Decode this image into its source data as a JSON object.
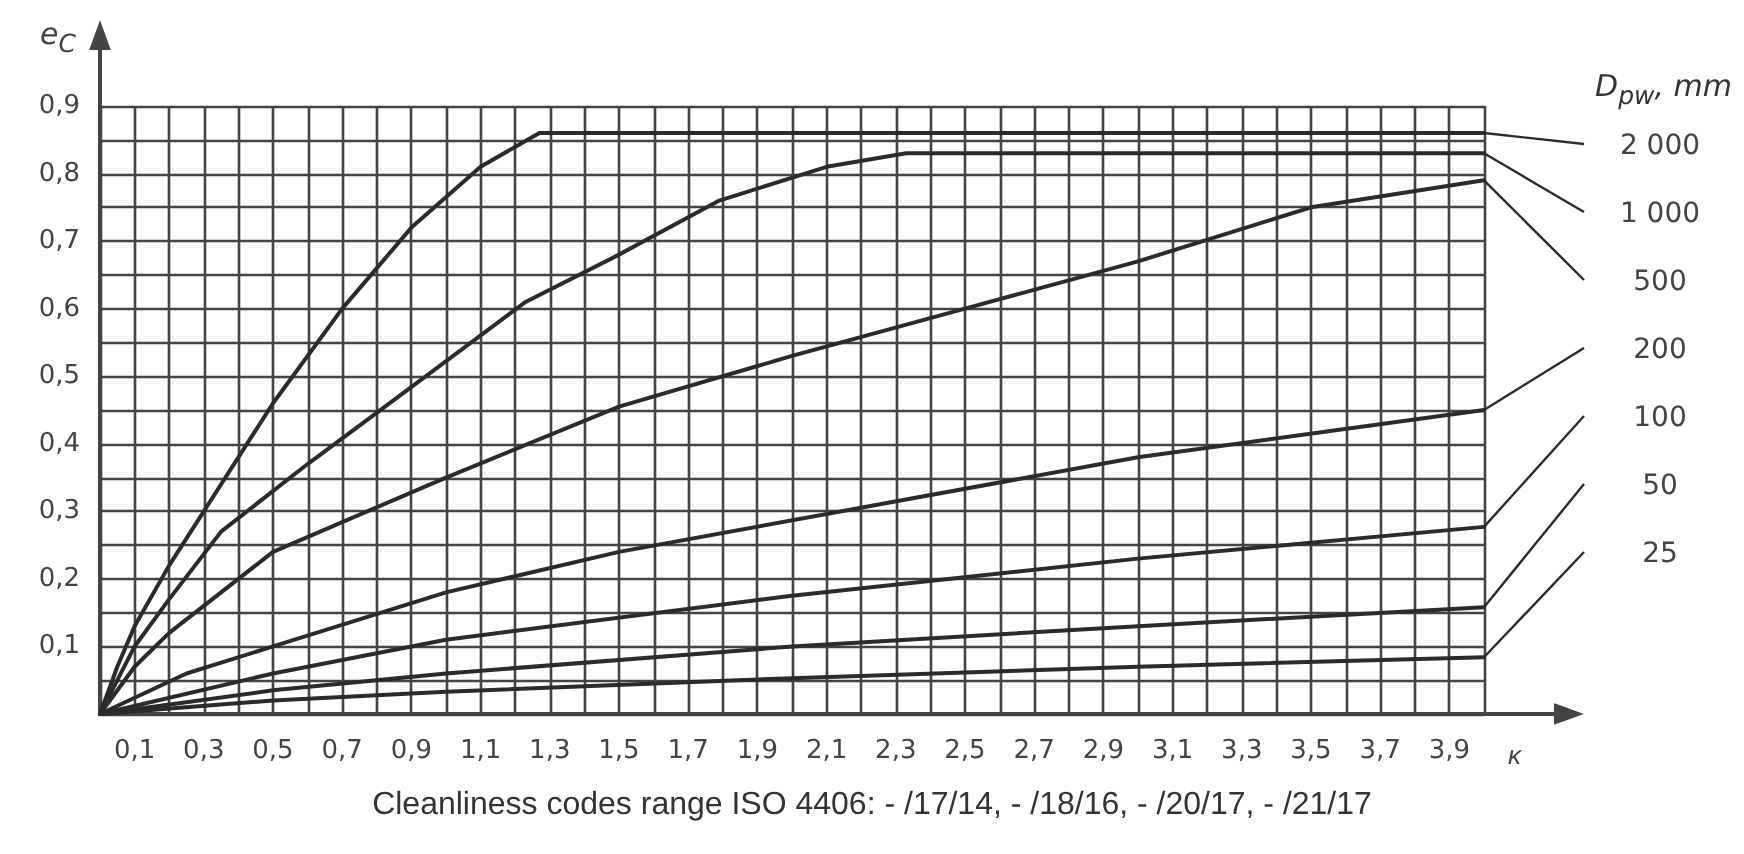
{
  "chart_data": {
    "type": "line",
    "xlabel": "κ",
    "ylabel": "e$_{C}$",
    "legend_title": "D$_{pw}$, mm",
    "xlim": [
      0,
      4
    ],
    "ylim": [
      0,
      0.9
    ],
    "xticks": [
      {
        "value": 0,
        "label": null
      },
      {
        "value": 0.1,
        "label": "0,1"
      },
      {
        "value": 0.2,
        "label": null
      },
      {
        "value": 0.3,
        "label": "0,3"
      },
      {
        "value": 0.4,
        "label": null
      },
      {
        "value": 0.5,
        "label": "0,5"
      },
      {
        "value": 0.6,
        "label": null
      },
      {
        "value": 0.7,
        "label": "0,7"
      },
      {
        "value": 0.8,
        "label": null
      },
      {
        "value": 0.9,
        "label": "0,9"
      },
      {
        "value": 1.0,
        "label": null
      },
      {
        "value": 1.1,
        "label": "1,1"
      },
      {
        "value": 1.2,
        "label": null
      },
      {
        "value": 1.3,
        "label": "1,3"
      },
      {
        "value": 1.4,
        "label": null
      },
      {
        "value": 1.5,
        "label": "1,5"
      },
      {
        "value": 1.6,
        "label": null
      },
      {
        "value": 1.7,
        "label": "1,7"
      },
      {
        "value": 1.8,
        "label": null
      },
      {
        "value": 1.9,
        "label": "1,9"
      },
      {
        "value": 2.0,
        "label": null
      },
      {
        "value": 2.1,
        "label": "2,1"
      },
      {
        "value": 2.2,
        "label": null
      },
      {
        "value": 2.3,
        "label": "2,3"
      },
      {
        "value": 2.4,
        "label": null
      },
      {
        "value": 2.5,
        "label": "2,5"
      },
      {
        "value": 2.6,
        "label": null
      },
      {
        "value": 2.7,
        "label": "2,7"
      },
      {
        "value": 2.8,
        "label": null
      },
      {
        "value": 2.9,
        "label": "2,9"
      },
      {
        "value": 3.0,
        "label": null
      },
      {
        "value": 3.1,
        "label": "3,1"
      },
      {
        "value": 3.2,
        "label": null
      },
      {
        "value": 3.3,
        "label": "3,3"
      },
      {
        "value": 3.4,
        "label": null
      },
      {
        "value": 3.5,
        "label": "3,5"
      },
      {
        "value": 3.6,
        "label": null
      },
      {
        "value": 3.7,
        "label": "3,7"
      },
      {
        "value": 3.8,
        "label": null
      },
      {
        "value": 3.9,
        "label": "3,9"
      },
      {
        "value": 4.0,
        "label": null
      }
    ],
    "yticks": [
      {
        "value": 0,
        "label": null
      },
      {
        "value": 0.05,
        "label": null
      },
      {
        "value": 0.1,
        "label": "0,1"
      },
      {
        "value": 0.15,
        "label": null
      },
      {
        "value": 0.2,
        "label": "0,2"
      },
      {
        "value": 0.25,
        "label": null
      },
      {
        "value": 0.3,
        "label": "0,3"
      },
      {
        "value": 0.35,
        "label": null
      },
      {
        "value": 0.4,
        "label": "0,4"
      },
      {
        "value": 0.45,
        "label": null
      },
      {
        "value": 0.5,
        "label": "0,5"
      },
      {
        "value": 0.55,
        "label": null
      },
      {
        "value": 0.6,
        "label": "0,6"
      },
      {
        "value": 0.65,
        "label": null
      },
      {
        "value": 0.7,
        "label": "0,7"
      },
      {
        "value": 0.75,
        "label": null
      },
      {
        "value": 0.8,
        "label": "0,8"
      },
      {
        "value": 0.85,
        "label": null
      },
      {
        "value": 0.9,
        "label": "0,9"
      }
    ],
    "grid": true,
    "marker": "none",
    "line_style": "solid",
    "series": [
      {
        "name": "2 000",
        "color": "#2b2b2b",
        "x": [
          0,
          0.05,
          0.1,
          0.2,
          0.3,
          0.5,
          0.7,
          0.9,
          1.1,
          1.27,
          4
        ],
        "values": [
          0,
          0.07,
          0.13,
          0.22,
          0.3,
          0.46,
          0.6,
          0.72,
          0.81,
          0.86,
          0.86
        ]
      },
      {
        "name": "1 000",
        "color": "#2b2b2b",
        "x": [
          0,
          0.1,
          0.2,
          0.35,
          0.6,
          0.85,
          1.23,
          1.5,
          1.79,
          2.1,
          2.33,
          4
        ],
        "values": [
          0,
          0.1,
          0.17,
          0.27,
          0.37,
          0.465,
          0.61,
          0.68,
          0.76,
          0.81,
          0.83,
          0.83
        ]
      },
      {
        "name": "500",
        "color": "#2b2b2b",
        "x": [
          0,
          0.1,
          0.2,
          0.5,
          1,
          1.5,
          2,
          2.5,
          3,
          3.5,
          4
        ],
        "values": [
          0,
          0.07,
          0.12,
          0.24,
          0.35,
          0.455,
          0.53,
          0.6,
          0.67,
          0.75,
          0.79
        ]
      },
      {
        "name": "200",
        "color": "#2b2b2b",
        "x": [
          0,
          0.25,
          0.5,
          1,
          1.5,
          2.25,
          3,
          4
        ],
        "values": [
          0,
          0.06,
          0.1,
          0.18,
          0.24,
          0.31,
          0.38,
          0.45
        ]
      },
      {
        "name": "100",
        "color": "#2b2b2b",
        "x": [
          0,
          0.5,
          1,
          2,
          3,
          4
        ],
        "values": [
          0,
          0.06,
          0.11,
          0.175,
          0.23,
          0.277
        ]
      },
      {
        "name": "50",
        "color": "#2b2b2b",
        "x": [
          0,
          0.5,
          1,
          2,
          3,
          4
        ],
        "values": [
          0,
          0.035,
          0.06,
          0.1,
          0.13,
          0.158
        ]
      },
      {
        "name": "25",
        "color": "#2b2b2b",
        "x": [
          0,
          0.5,
          1,
          2,
          3,
          4
        ],
        "values": [
          0,
          0.02,
          0.033,
          0.053,
          0.07,
          0.084
        ]
      }
    ],
    "annotations": [
      "Cleanliness codes range ISO 4406: - /17/14, - /18/16, - /20/17, - /21/17"
    ]
  }
}
